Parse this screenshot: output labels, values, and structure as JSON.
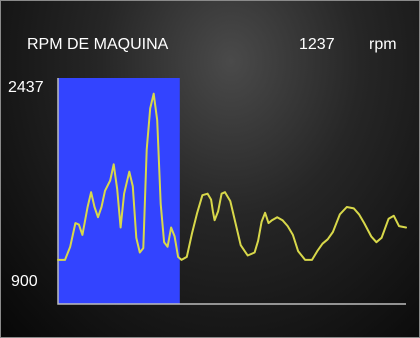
{
  "title": "RPM DE MAQUINA",
  "current_value": "1237",
  "unit": "rpm",
  "y_max_label": "2437",
  "y_min_label": "900",
  "colors": {
    "highlight": "#3344ff",
    "trace": "#d8d84a",
    "axis": "#bdbdbd"
  },
  "chart_data": {
    "type": "line",
    "ylim": [
      900,
      2437
    ],
    "highlight_end": 0.35,
    "series": [
      {
        "points": [
          [
            0.0,
            1200
          ],
          [
            0.02,
            1200
          ],
          [
            0.035,
            1290
          ],
          [
            0.05,
            1450
          ],
          [
            0.06,
            1440
          ],
          [
            0.07,
            1370
          ],
          [
            0.085,
            1560
          ],
          [
            0.095,
            1660
          ],
          [
            0.105,
            1560
          ],
          [
            0.115,
            1490
          ],
          [
            0.125,
            1560
          ],
          [
            0.135,
            1670
          ],
          [
            0.15,
            1740
          ],
          [
            0.16,
            1850
          ],
          [
            0.17,
            1680
          ],
          [
            0.18,
            1420
          ],
          [
            0.19,
            1650
          ],
          [
            0.205,
            1800
          ],
          [
            0.215,
            1700
          ],
          [
            0.225,
            1350
          ],
          [
            0.235,
            1250
          ],
          [
            0.245,
            1280
          ],
          [
            0.255,
            1950
          ],
          [
            0.265,
            2230
          ],
          [
            0.275,
            2330
          ],
          [
            0.285,
            2150
          ],
          [
            0.295,
            1580
          ],
          [
            0.305,
            1320
          ],
          [
            0.315,
            1290
          ],
          [
            0.325,
            1420
          ],
          [
            0.335,
            1360
          ],
          [
            0.345,
            1220
          ],
          [
            0.355,
            1200
          ],
          [
            0.37,
            1220
          ],
          [
            0.385,
            1380
          ],
          [
            0.4,
            1520
          ],
          [
            0.415,
            1640
          ],
          [
            0.43,
            1650
          ],
          [
            0.44,
            1610
          ],
          [
            0.445,
            1530
          ],
          [
            0.45,
            1470
          ],
          [
            0.46,
            1530
          ],
          [
            0.47,
            1650
          ],
          [
            0.48,
            1660
          ],
          [
            0.495,
            1600
          ],
          [
            0.51,
            1450
          ],
          [
            0.525,
            1300
          ],
          [
            0.545,
            1230
          ],
          [
            0.565,
            1250
          ],
          [
            0.575,
            1330
          ],
          [
            0.585,
            1460
          ],
          [
            0.595,
            1520
          ],
          [
            0.605,
            1450
          ],
          [
            0.615,
            1470
          ],
          [
            0.63,
            1490
          ],
          [
            0.645,
            1470
          ],
          [
            0.66,
            1430
          ],
          [
            0.675,
            1370
          ],
          [
            0.69,
            1260
          ],
          [
            0.71,
            1200
          ],
          [
            0.73,
            1200
          ],
          [
            0.745,
            1260
          ],
          [
            0.76,
            1310
          ],
          [
            0.775,
            1340
          ],
          [
            0.79,
            1390
          ],
          [
            0.81,
            1510
          ],
          [
            0.83,
            1560
          ],
          [
            0.85,
            1550
          ],
          [
            0.865,
            1510
          ],
          [
            0.88,
            1450
          ],
          [
            0.9,
            1360
          ],
          [
            0.915,
            1320
          ],
          [
            0.93,
            1350
          ],
          [
            0.95,
            1480
          ],
          [
            0.965,
            1500
          ],
          [
            0.98,
            1430
          ],
          [
            1.0,
            1420
          ]
        ]
      }
    ]
  }
}
